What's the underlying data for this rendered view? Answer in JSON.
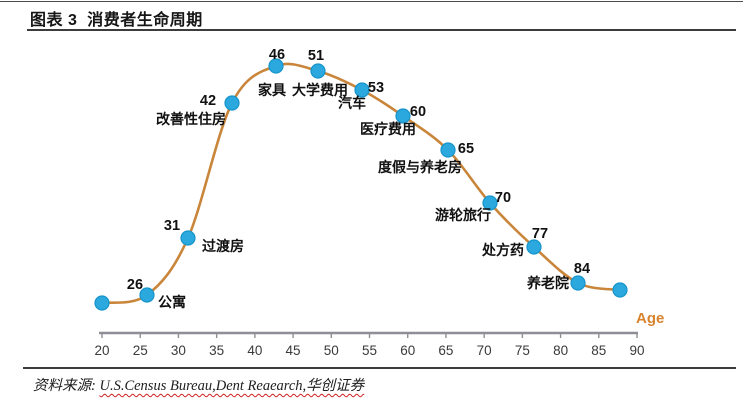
{
  "header": {
    "title": "图表 3  消费者生命周期"
  },
  "chart_data": {
    "type": "line",
    "title": "消费者生命周期",
    "xlabel": "Age",
    "x_range": [
      20,
      90
    ],
    "x_ticks": [
      20,
      25,
      30,
      35,
      40,
      45,
      50,
      55,
      60,
      65,
      70,
      75,
      80,
      85,
      90
    ],
    "legend": "none",
    "grid": "off",
    "line_color": "#C9863B",
    "point_color": "#2BA9DE",
    "point_edge_color": "#1694CB",
    "age_label_color": "#D8842F",
    "axis_color": "#8E8E96",
    "points": [
      {
        "age": 20,
        "label": "",
        "spend_level_est": 3
      },
      {
        "age": 26,
        "label": "公寓",
        "spend_level_est": 6
      },
      {
        "age": 31,
        "label": "过渡房",
        "spend_level_est": 29
      },
      {
        "age": 42,
        "label": "改善性住房",
        "spend_level_est": 83
      },
      {
        "age": 46,
        "label": "家具",
        "spend_level_est": 97
      },
      {
        "age": 51,
        "label": "大学费用",
        "spend_level_est": 95
      },
      {
        "age": 53,
        "label": "汽车",
        "spend_level_est": 88
      },
      {
        "age": 60,
        "label": "医疗费用",
        "spend_level_est": 78
      },
      {
        "age": 65,
        "label": "度假与养老房",
        "spend_level_est": 64
      },
      {
        "age": 70,
        "label": "游轮旅行",
        "spend_level_est": 43
      },
      {
        "age": 77,
        "label": "处方药",
        "spend_level_est": 25
      },
      {
        "age": 84,
        "label": "养老院",
        "spend_level_est": 11
      },
      {
        "age": 87,
        "label": "",
        "spend_level_est": 8
      }
    ]
  },
  "footer": {
    "prefix": "资料来源: ",
    "refs": "U.S.Census Bureau,Dent Reaearch,华创证券"
  }
}
